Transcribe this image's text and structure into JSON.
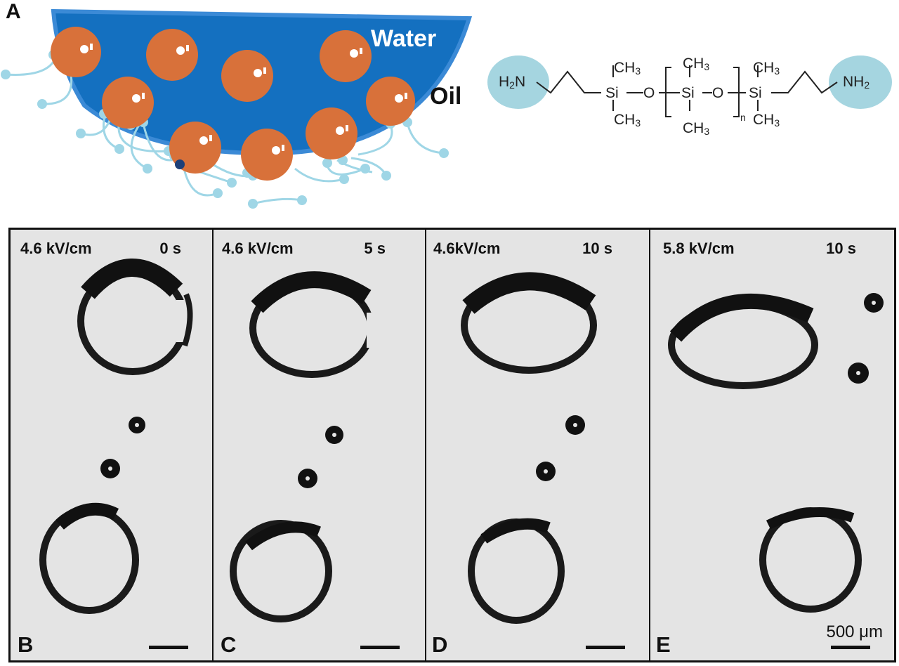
{
  "panel_a": {
    "label": "A",
    "water_label": "Water",
    "oil_label": "Oil",
    "molecule": {
      "left_amine": "H",
      "left_amine_sub": "2",
      "left_amine_n": "N",
      "right_amine": "NH",
      "right_amine_sub": "2",
      "si": "Si",
      "o": "O",
      "methyl": "CH",
      "methyl_sub": "3",
      "repeat_n": "n"
    },
    "colors": {
      "water": "#1470c0",
      "nanoparticle": "#d8713a",
      "ligand": "#9fd6e6"
    }
  },
  "panels": [
    {
      "label": "B",
      "field": "4.6 kV/cm",
      "time": "0 s"
    },
    {
      "label": "C",
      "field": "4.6 kV/cm",
      "time": "5 s"
    },
    {
      "label": "D",
      "field": "4.6kV/cm",
      "time": "10 s"
    },
    {
      "label": "E",
      "field": "5.8 kV/cm",
      "time": "10 s"
    }
  ],
  "scale_bar": "500 μm"
}
